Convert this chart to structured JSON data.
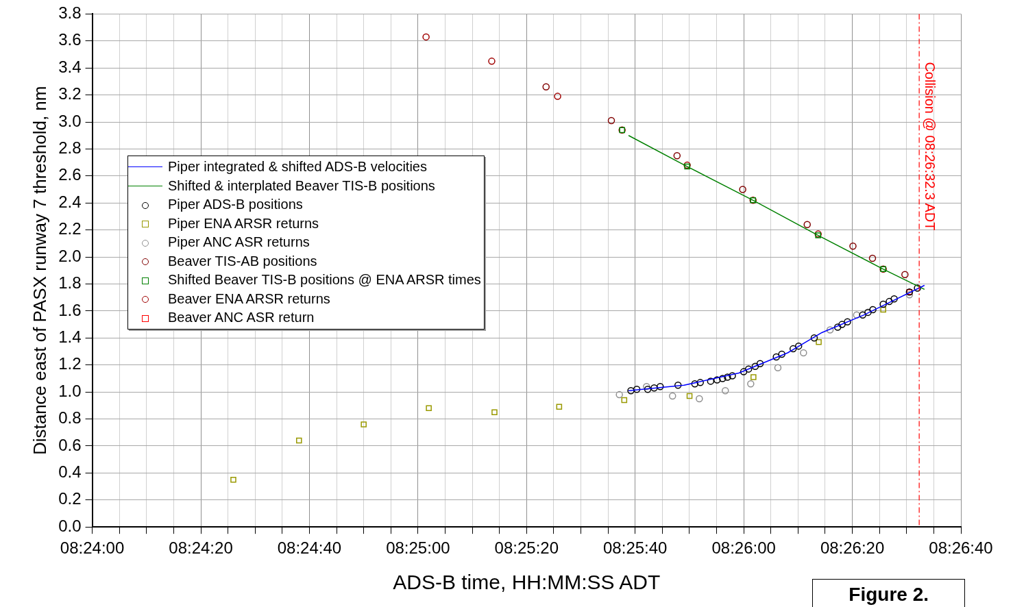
{
  "chart_data": {
    "type": "scatter",
    "xlabel": "ADS-B time, HH:MM:SS ADT",
    "ylabel": "Distance east of PASX runway 7 threshold, nm",
    "annotations": [
      "Figure 2."
    ],
    "xlim": [
      8.4,
      8.444444
    ],
    "ylim": [
      0,
      3.8
    ],
    "xticks": [
      {
        "value": 8.4,
        "label": "08:24:00"
      },
      {
        "value": 8.401389,
        "label": null
      },
      {
        "value": 8.402778,
        "label": null
      },
      {
        "value": 8.404167,
        "label": null
      },
      {
        "value": 8.405556,
        "label": "08:24:20"
      },
      {
        "value": 8.406944,
        "label": null
      },
      {
        "value": 8.408333,
        "label": null
      },
      {
        "value": 8.409722,
        "label": null
      },
      {
        "value": 8.411111,
        "label": "08:24:40"
      },
      {
        "value": 8.4125,
        "label": null
      },
      {
        "value": 8.413889,
        "label": null
      },
      {
        "value": 8.415278,
        "label": null
      },
      {
        "value": 8.416667,
        "label": "08:25:00"
      },
      {
        "value": 8.418056,
        "label": null
      },
      {
        "value": 8.419444,
        "label": null
      },
      {
        "value": 8.420833,
        "label": null
      },
      {
        "value": 8.422222,
        "label": "08:25:20"
      },
      {
        "value": 8.423611,
        "label": null
      },
      {
        "value": 8.425,
        "label": null
      },
      {
        "value": 8.426389,
        "label": null
      },
      {
        "value": 8.427778,
        "label": "08:25:40"
      },
      {
        "value": 8.429167,
        "label": null
      },
      {
        "value": 8.430556,
        "label": null
      },
      {
        "value": 8.431944,
        "label": null
      },
      {
        "value": 8.433333,
        "label": "08:26:00"
      },
      {
        "value": 8.434722,
        "label": null
      },
      {
        "value": 8.436111,
        "label": null
      },
      {
        "value": 8.4375,
        "label": null
      },
      {
        "value": 8.438889,
        "label": "08:26:20"
      },
      {
        "value": 8.440278,
        "label": null
      },
      {
        "value": 8.441667,
        "label": null
      },
      {
        "value": 8.443056,
        "label": null
      },
      {
        "value": 8.444444,
        "label": "08:26:40"
      }
    ],
    "yticks": [
      {
        "value": 0,
        "label": "0.0"
      },
      0.2,
      0.4,
      0.6,
      0.8,
      {
        "value": 1,
        "label": "1.0"
      },
      1.2,
      1.4,
      1.6,
      1.8,
      {
        "value": 2,
        "label": "2.0"
      },
      2.2,
      2.4,
      2.6,
      2.8,
      {
        "value": 3,
        "label": "3.0"
      },
      3.2,
      3.4,
      3.6,
      3.8
    ],
    "grid": true,
    "legend": "top left",
    "ref_lines": [
      {
        "axis": "x",
        "value": 8.44231,
        "label": "Collision @ 08:26:32.3 ADT",
        "color": "#ff0000",
        "line_style": "dashed"
      }
    ],
    "series": [
      {
        "name": "Piper integrated & shifted ADS-B velocities",
        "type": "line",
        "color": "#0000ff",
        "marker": "none",
        "x": [
          8.42744,
          8.43028,
          8.43308,
          8.43558,
          8.43733,
          8.43947,
          8.44258
        ],
        "values": [
          1.01,
          1.05,
          1.14,
          1.29,
          1.44,
          1.57,
          1.79
        ]
      },
      {
        "name": "Shifted & interplated Beaver TIS-B positions",
        "type": "line",
        "color": "#008000",
        "marker": "none",
        "x": [
          8.42744,
          8.43044,
          8.43381,
          8.43714,
          8.44047,
          8.44258
        ],
        "values": [
          2.9,
          2.67,
          2.42,
          2.16,
          1.91,
          1.76
        ]
      },
      {
        "name": "Piper ADS-B positions",
        "color": "#000000",
        "marker": "circle",
        "x": [
          8.42756,
          8.42786,
          8.42842,
          8.42875,
          8.42906,
          8.42997,
          8.43083,
          8.43111,
          8.43164,
          8.43197,
          8.43225,
          8.4325,
          8.43275,
          8.43333,
          8.43358,
          8.43392,
          8.43417,
          8.435,
          8.43528,
          8.43586,
          8.43614,
          8.43694,
          8.43814,
          8.43836,
          8.43864,
          8.43942,
          8.43969,
          8.43994,
          8.44047,
          8.44078,
          8.44103,
          8.44181,
          8.44222
        ],
        "values": [
          1.01,
          1.02,
          1.02,
          1.03,
          1.04,
          1.05,
          1.06,
          1.07,
          1.08,
          1.09,
          1.1,
          1.11,
          1.12,
          1.15,
          1.17,
          1.19,
          1.21,
          1.26,
          1.28,
          1.32,
          1.34,
          1.4,
          1.48,
          1.5,
          1.52,
          1.57,
          1.59,
          1.61,
          1.65,
          1.67,
          1.69,
          1.74,
          1.77
        ]
      },
      {
        "name": "Piper ENA ARSR returns",
        "color": "#999900",
        "marker": "square",
        "x": [
          8.40722,
          8.41058,
          8.41389,
          8.41722,
          8.42058,
          8.42389,
          8.42722,
          8.43056,
          8.43383,
          8.43717,
          8.44047
        ],
        "values": [
          0.35,
          0.64,
          0.76,
          0.88,
          0.85,
          0.89,
          0.94,
          0.97,
          1.11,
          1.37,
          1.61
        ]
      },
      {
        "name": "Piper ANC ASR returns",
        "color": "#909090",
        "marker": "circle",
        "x": [
          8.42697,
          8.42836,
          8.42969,
          8.43106,
          8.43239,
          8.43369,
          8.43508,
          8.43639,
          8.43775,
          8.43911,
          8.44181
        ],
        "values": [
          0.98,
          1.04,
          0.97,
          0.95,
          1.01,
          1.06,
          1.18,
          1.29,
          1.46,
          1.57,
          1.72
        ]
      },
      {
        "name": "Beaver TIS-AB positions",
        "color": "#800000",
        "marker": "circle",
        "x": [
          8.42322,
          8.42656,
          8.42992,
          8.43328,
          8.43658,
          8.43892,
          8.43992,
          8.44158
        ],
        "values": [
          3.26,
          3.01,
          2.75,
          2.5,
          2.24,
          2.08,
          1.99,
          1.87
        ]
      },
      {
        "name": "Shifted Beaver TIS-B positions @ ENA ARSR times",
        "color": "#008000",
        "marker": "square",
        "x": [
          8.42711,
          8.43044,
          8.43381,
          8.43714,
          8.44047
        ],
        "values": [
          2.94,
          2.67,
          2.42,
          2.16,
          1.91
        ]
      },
      {
        "name": "Beaver ENA ARSR returns",
        "color": "#a00000",
        "marker": "circle",
        "x": [
          8.41708,
          8.42044,
          8.42381,
          8.42711,
          8.43044,
          8.43381,
          8.43714,
          8.44047
        ],
        "values": [
          3.63,
          3.45,
          3.19,
          2.94,
          2.68,
          2.42,
          2.17,
          1.91
        ]
      },
      {
        "name": "Beaver ANC ASR return",
        "color": "#ff0000",
        "marker": "square",
        "x": [
          8.44181
        ],
        "values": [
          1.74
        ]
      }
    ]
  }
}
